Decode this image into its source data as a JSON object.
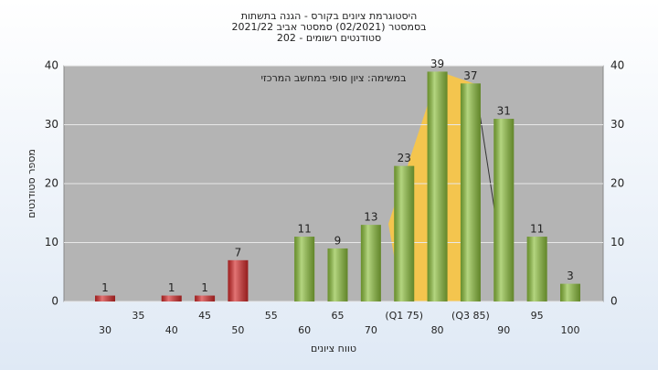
{
  "chart_data": {
    "type": "bar",
    "title_lines": [
      "היסטוגרמת ציונים בקורס - הגנה בתשתות",
      "בסמסטר  (02/2021)  סמסטר אביב 2021/22",
      "סטודנטים רשומים - 202"
    ],
    "annotation": "במשימה: ציון סופי במחשב המרכזי",
    "y_label": "מספר סטודנטים",
    "x_label": "טווח ציונים",
    "categories": [
      "30",
      "35",
      "40",
      "45",
      "50",
      "55",
      "60",
      "65",
      "70",
      "(Q1 75)",
      "80",
      "(Q3 85)",
      "90",
      "95",
      "100"
    ],
    "values": [
      1,
      null,
      1,
      1,
      7,
      null,
      11,
      9,
      13,
      23,
      39,
      37,
      31,
      11,
      3
    ],
    "colors": [
      "#d42a2a",
      null,
      "#d42a2a",
      "#d42a2a",
      "#d42a2a",
      null,
      "#8cbf3c",
      "#8cbf3c",
      "#8cbf3c",
      "#8cbf3c",
      "#8cbf3c",
      "#8cbf3c",
      "#8cbf3c",
      "#8cbf3c",
      "#8cbf3c"
    ],
    "ylim": [
      0,
      40
    ],
    "yticks": [
      0,
      10,
      20,
      30,
      40
    ],
    "grid": true
  }
}
